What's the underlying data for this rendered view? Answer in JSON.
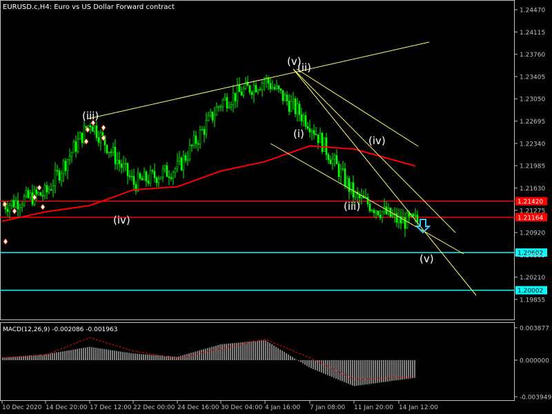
{
  "chart": {
    "title": "EURUSD.c,H4:  Euro vs US Dollar Forward contract",
    "colors": {
      "background": "#000000",
      "axis": "#c0c0c0",
      "bull_candle": "#00ff00",
      "bear_candle": "#00ff00",
      "ma": "#ff0000",
      "trendline": "#ffff66",
      "hline_red": "#ff0000",
      "hline_cyan": "#00ffff",
      "macd_hist": "#ffffff",
      "macd_signal": "#ff0000",
      "arrow": "#33ccff"
    }
  },
  "price_axis": {
    "ticks": [
      "1.24470",
      "1.24115",
      "1.23760",
      "1.23405",
      "1.23050",
      "1.22695",
      "1.22340",
      "1.21985",
      "1.21630",
      "1.21275",
      "1.20920",
      "1.20565",
      "1.20210",
      "1.19855"
    ],
    "ylim": [
      1.19855,
      1.2447
    ]
  },
  "price_levels": [
    {
      "label": "1.21420",
      "value": 1.2142,
      "color": "#ff0000"
    },
    {
      "label": "1.21164",
      "value": 1.21164,
      "color": "#ff0000"
    },
    {
      "label": "1.20602",
      "value": 1.20602,
      "color": "#00ffff"
    },
    {
      "label": "1.20002",
      "value": 1.20002,
      "color": "#00ffff"
    }
  ],
  "time_axis": {
    "ticks": [
      "10 Dec 2020",
      "14 Dec 20:00",
      "17 Dec 12:00",
      "22 Dec 00:00",
      "24 Dec 16:00",
      "30 Dec 04:00",
      "4 Jan 16:00",
      "7 Jan 08:00",
      "11 Jan 20:00",
      "14 Jan 12:00"
    ]
  },
  "wave_labels": [
    "(iii)",
    "(iv)",
    "(v)",
    "(ii)",
    "(i)",
    "(iii)",
    "(iv)",
    "(v)"
  ],
  "macd": {
    "label": "MACD(12,26,9) -0.002086 -0.001963",
    "ticks": [
      "0.003877",
      "0.000000",
      "-0.003949"
    ],
    "ylim": [
      -0.003949,
      0.003877
    ]
  },
  "chart_data": {
    "type": "line",
    "title": "EURUSD.c,H4:  Euro vs US Dollar Forward contract",
    "ylim": [
      1.19855,
      1.2447
    ],
    "x": [
      "10 Dec 2020",
      "14 Dec 20:00",
      "17 Dec 12:00",
      "22 Dec 00:00",
      "24 Dec 16:00",
      "30 Dec 04:00",
      "4 Jan 16:00",
      "7 Jan 08:00",
      "11 Jan 20:00",
      "14 Jan 12:00"
    ],
    "series": [
      {
        "values": [
          1.2135,
          1.2155,
          1.2268,
          1.217,
          1.2195,
          1.23,
          1.2335,
          1.2265,
          1.215,
          1.211
        ]
      },
      {
        "values": [
          1.211,
          1.2125,
          1.2135,
          1.216,
          1.2165,
          1.219,
          1.2205,
          1.223,
          1.2225,
          1.2198
        ]
      }
    ],
    "macd_hist": [
      0.0003,
      0.0007,
      0.0016,
      0.0008,
      0.0004,
      0.0019,
      0.0024,
      -0.0009,
      -0.0031,
      -0.0021
    ],
    "macd_signal": [
      0.0003,
      0.0006,
      0.0027,
      0.0011,
      0.0002,
      0.0014,
      0.0025,
      0.0003,
      -0.0023,
      -0.002
    ]
  }
}
